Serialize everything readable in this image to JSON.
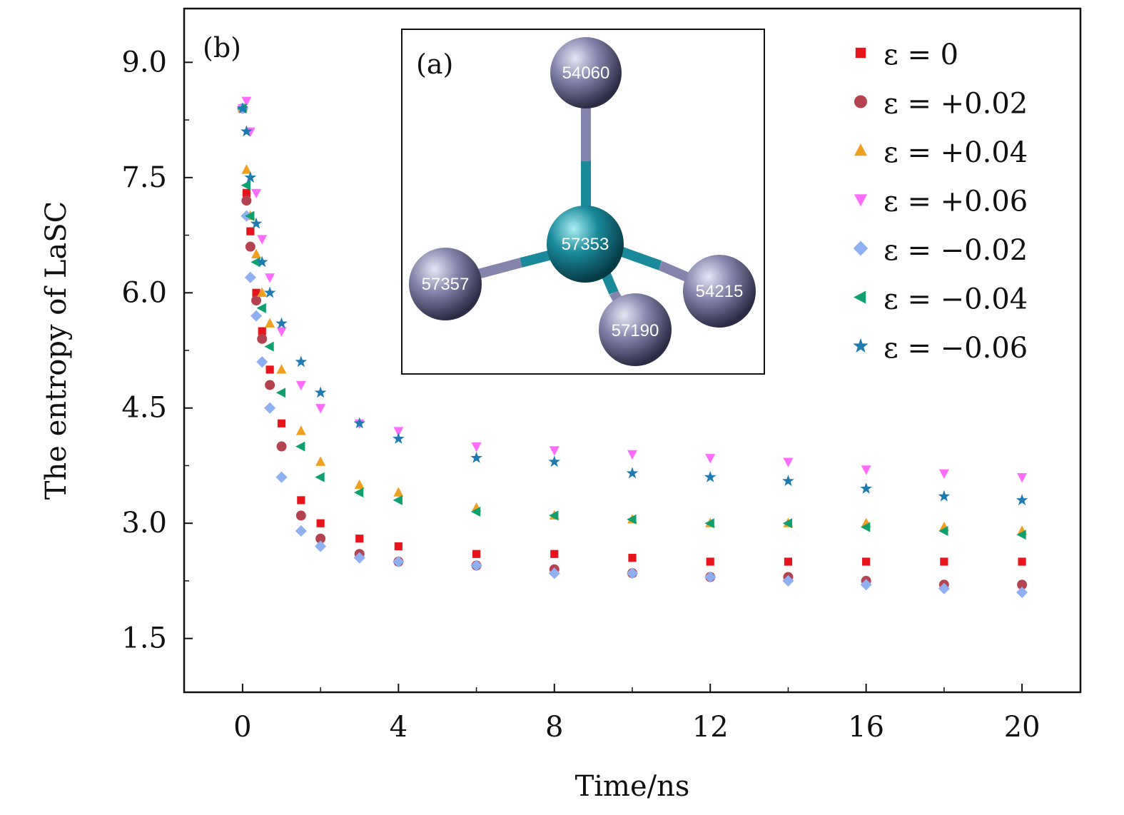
{
  "chart_data": {
    "type": "scatter",
    "panel_label": "(b)",
    "xlabel": "Time/ns",
    "ylabel": "The entropy of LaSC",
    "xlim": [
      -1.5,
      21.5
    ],
    "ylim": [
      0.8,
      9.7
    ],
    "x_ticks": [
      0,
      4,
      8,
      12,
      16,
      20
    ],
    "y_ticks": [
      1.5,
      3.0,
      4.5,
      6.0,
      7.5,
      9.0
    ],
    "y_tick_labels": [
      "1.5",
      "3.0",
      "4.5",
      "6.0",
      "7.5",
      "9.0"
    ],
    "x_tick_labels": [
      "0",
      "4",
      "8",
      "12",
      "16",
      "20"
    ],
    "grid": false,
    "legend_position": "top-right",
    "x": [
      0,
      0.1,
      0.2,
      0.35,
      0.5,
      0.7,
      1.0,
      1.5,
      2.0,
      3.0,
      4.0,
      6.0,
      8.0,
      10.0,
      12.0,
      14.0,
      16.0,
      18.0,
      20.0
    ],
    "series": [
      {
        "name": "ε = 0",
        "marker": "square",
        "color": "#e8141c",
        "values": [
          8.4,
          7.3,
          6.8,
          6.0,
          5.5,
          5.0,
          4.3,
          3.3,
          3.0,
          2.8,
          2.7,
          2.6,
          2.6,
          2.55,
          2.5,
          2.5,
          2.5,
          2.5,
          2.5
        ]
      },
      {
        "name": "ε = +0.02",
        "marker": "circle",
        "color": "#b5434f",
        "values": [
          8.4,
          7.2,
          6.6,
          5.9,
          5.4,
          4.8,
          4.0,
          3.1,
          2.8,
          2.6,
          2.5,
          2.45,
          2.4,
          2.35,
          2.3,
          2.3,
          2.25,
          2.2,
          2.2
        ]
      },
      {
        "name": "ε = +0.04",
        "marker": "triangle-up",
        "color": "#f0a020",
        "values": [
          8.4,
          7.6,
          7.0,
          6.5,
          6.0,
          5.6,
          5.0,
          4.2,
          3.8,
          3.5,
          3.4,
          3.2,
          3.1,
          3.05,
          3.0,
          3.0,
          3.0,
          2.95,
          2.9
        ]
      },
      {
        "name": "ε = +0.06",
        "marker": "triangle-down",
        "color": "#ff6bff",
        "values": [
          8.4,
          8.5,
          8.1,
          7.3,
          6.7,
          6.2,
          5.5,
          4.8,
          4.5,
          4.3,
          4.2,
          4.0,
          3.95,
          3.9,
          3.85,
          3.8,
          3.7,
          3.65,
          3.6
        ]
      },
      {
        "name": "ε = −0.02",
        "marker": "diamond",
        "color": "#8fb0f0",
        "values": [
          8.4,
          7.0,
          6.2,
          5.7,
          5.1,
          4.5,
          3.6,
          2.9,
          2.7,
          2.55,
          2.5,
          2.45,
          2.35,
          2.35,
          2.3,
          2.25,
          2.2,
          2.15,
          2.1
        ]
      },
      {
        "name": "ε = −0.04",
        "marker": "triangle-left",
        "color": "#10a070",
        "values": [
          8.4,
          7.4,
          7.0,
          6.4,
          5.8,
          5.3,
          4.7,
          4.0,
          3.6,
          3.4,
          3.3,
          3.15,
          3.1,
          3.05,
          3.0,
          3.0,
          2.95,
          2.9,
          2.85
        ]
      },
      {
        "name": "ε = −0.06",
        "marker": "star",
        "color": "#1e7ab0",
        "values": [
          8.4,
          8.1,
          7.5,
          6.9,
          6.4,
          6.0,
          5.6,
          5.1,
          4.7,
          4.3,
          4.1,
          3.85,
          3.8,
          3.65,
          3.6,
          3.55,
          3.45,
          3.35,
          3.3
        ]
      }
    ],
    "inset": {
      "label": "(a)",
      "center": {
        "id": "57353",
        "color": "#1a8a9a"
      },
      "neighbors": [
        {
          "id": "54060",
          "color": "#7c7ca6"
        },
        {
          "id": "57357",
          "color": "#7c7ca6"
        },
        {
          "id": "54215",
          "color": "#7c7ca6"
        },
        {
          "id": "57190",
          "color": "#7c7ca6"
        }
      ]
    }
  }
}
